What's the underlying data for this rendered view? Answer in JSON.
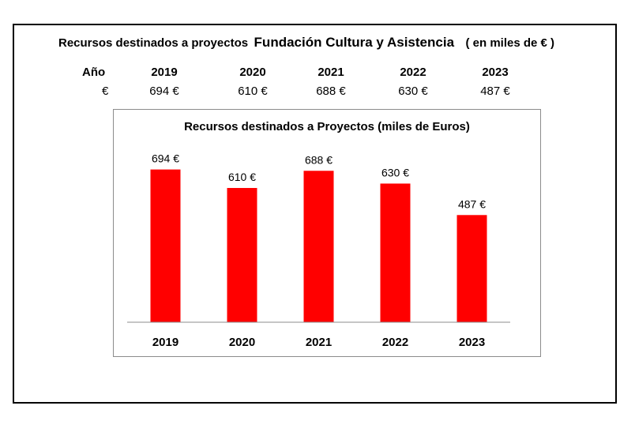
{
  "header": {
    "title_part1": "Recursos destinados a proyectos",
    "title_part2": "Fundación  Cultura y Asistencia",
    "title_part3": "( en miles de € )"
  },
  "table": {
    "year_header": "Año",
    "value_header": "€",
    "years": [
      "2019",
      "2020",
      "2021",
      "2022",
      "2023"
    ],
    "values": [
      "694 €",
      "610 €",
      "688 €",
      "630 €",
      "487 €"
    ]
  },
  "chart_data": {
    "type": "bar",
    "title": "Recursos destinados a Proyectos (miles de Euros)",
    "categories": [
      "2019",
      "2020",
      "2021",
      "2022",
      "2023"
    ],
    "values": [
      694,
      610,
      688,
      630,
      487
    ],
    "data_labels": [
      "694 €",
      "610 €",
      "688 €",
      "630 €",
      "487 €"
    ],
    "bar_color": "#ff0000",
    "ylim": [
      0,
      750
    ],
    "grid": false,
    "legend": "none"
  }
}
